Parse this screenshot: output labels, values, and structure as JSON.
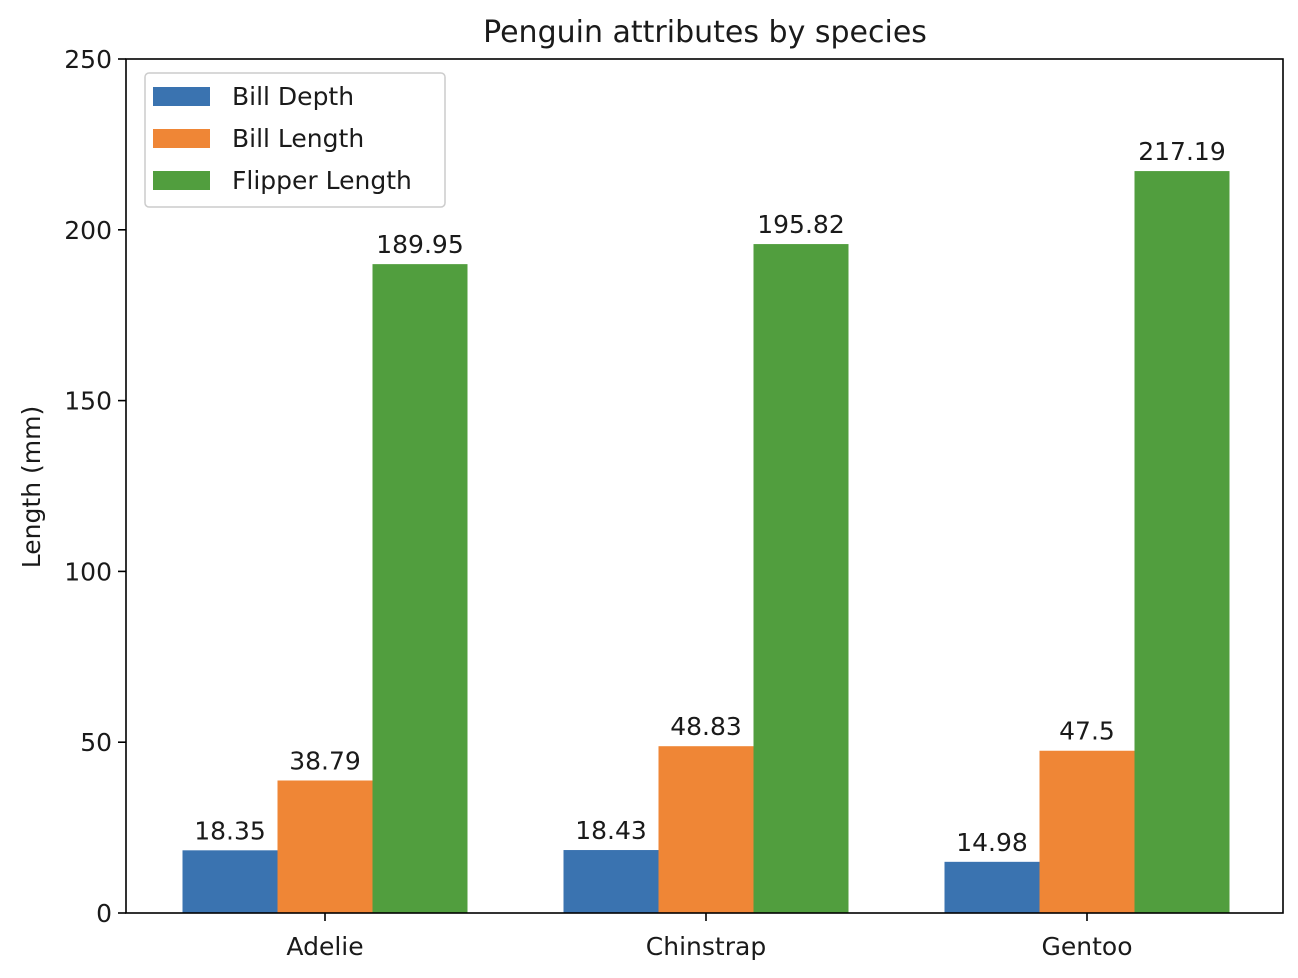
{
  "chart_data": {
    "type": "bar",
    "title": "Penguin attributes by species",
    "xlabel": "",
    "ylabel": "Length (mm)",
    "categories": [
      "Adelie",
      "Chinstrap",
      "Gentoo"
    ],
    "series": [
      {
        "name": "Bill Depth",
        "color": "#3a73b0",
        "values": [
          18.35,
          18.43,
          14.98
        ],
        "labels": [
          "18.35",
          "18.43",
          "14.98"
        ]
      },
      {
        "name": "Bill Length",
        "color": "#ef8636",
        "values": [
          38.79,
          48.83,
          47.5
        ],
        "labels": [
          "38.79",
          "48.83",
          "47.5"
        ]
      },
      {
        "name": "Flipper Length",
        "color": "#519e3e",
        "values": [
          189.95,
          195.82,
          217.19
        ],
        "labels": [
          "189.95",
          "195.82",
          "217.19"
        ]
      }
    ],
    "ylim": [
      0,
      250
    ],
    "yticks": [
      0,
      50,
      100,
      150,
      200,
      250
    ],
    "grid": false,
    "legend_position": "upper-left"
  }
}
